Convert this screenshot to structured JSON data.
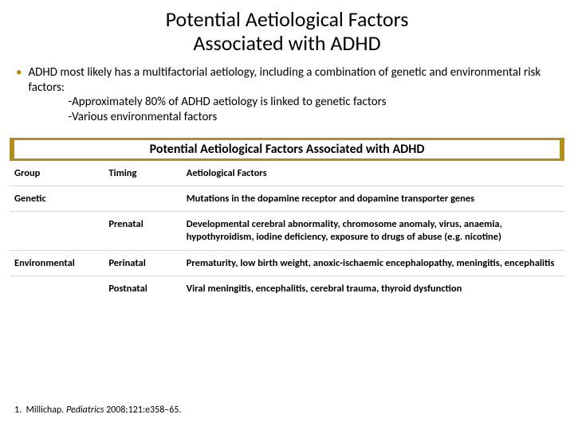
{
  "title_line1": "Potential Aetiological Factors",
  "title_line2": "Associated with ADHD",
  "bullet_main": "ADHD most likely has a multifactorial aetiology, including a combination of genetic and environmental risk factors:",
  "bullet_sub1": "-Approximately 80% of ADHD aetiology is linked to genetic factors",
  "bullet_sub2": "-Various environmental factors",
  "table": {
    "title": "Potential Aetiological Factors Associated with ADHD",
    "band_color": "#b08f1e",
    "border_color": "#d6d6d6",
    "header_fontsize": 12.5,
    "columns": [
      "Group",
      "Timing",
      "Aetiological Factors"
    ],
    "col_widths_pct": [
      17,
      14,
      69
    ],
    "rows": [
      {
        "group": "Genetic",
        "timing": "",
        "factors": "Mutations in the dopamine receptor and dopamine transporter genes"
      },
      {
        "group": "",
        "timing": "Prenatal",
        "factors": "Developmental cerebral abnormality, chromosome anomaly, virus, anaemia, hypothyroidism, iodine deficiency, exposure to drugs of abuse (e.g. nicotine)"
      },
      {
        "group": "Environmental",
        "timing": "Perinatal",
        "factors": "Prematurity, low birth weight, anoxic-ischaemic encephalopathy, meningitis, encephalitis"
      },
      {
        "group": "",
        "timing": "Postnatal",
        "factors": "Viral meningitis, encephalitis, cerebral trauma, thyroid dysfunction"
      }
    ]
  },
  "reference": {
    "num": "1.",
    "author": "Millichap.",
    "journal": "Pediatrics",
    "cite": "2008;121:e358–65."
  },
  "colors": {
    "bullet_dot": "#b08f00",
    "text": "#000000",
    "background": "#ffffff"
  },
  "font_family": "Calibri"
}
